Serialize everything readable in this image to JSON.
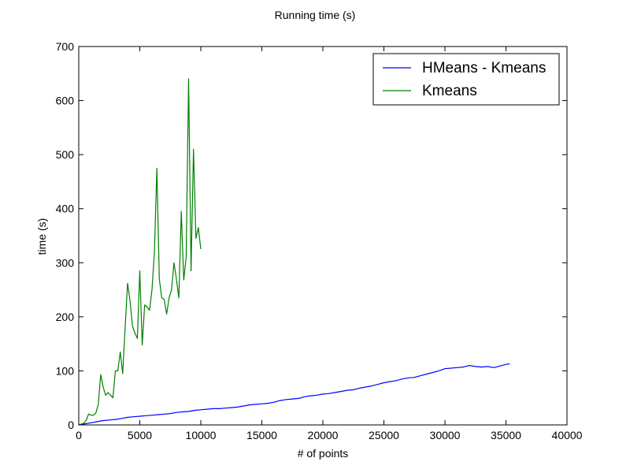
{
  "chart_data": {
    "type": "line",
    "title": "Running time (s)",
    "xlabel": "# of points",
    "ylabel": "time (s)",
    "xlim": [
      0,
      40000
    ],
    "ylim": [
      0,
      700
    ],
    "xticks": [
      0,
      5000,
      10000,
      15000,
      20000,
      25000,
      30000,
      35000,
      40000
    ],
    "yticks": [
      0,
      100,
      200,
      300,
      400,
      500,
      600,
      700
    ],
    "grid": false,
    "legend_position": "top-right",
    "series": [
      {
        "name": "HMeans - Kmeans",
        "color": "#0000ff",
        "points": [
          [
            0,
            0
          ],
          [
            500,
            2
          ],
          [
            1000,
            4
          ],
          [
            1500,
            6
          ],
          [
            2000,
            8
          ],
          [
            2500,
            9
          ],
          [
            3000,
            10
          ],
          [
            3500,
            12
          ],
          [
            4000,
            14
          ],
          [
            4500,
            15
          ],
          [
            5000,
            16
          ],
          [
            5500,
            17
          ],
          [
            6000,
            18
          ],
          [
            6500,
            19
          ],
          [
            7000,
            20
          ],
          [
            7500,
            21
          ],
          [
            8000,
            23
          ],
          [
            8500,
            24
          ],
          [
            9000,
            25
          ],
          [
            9500,
            27
          ],
          [
            10000,
            28
          ],
          [
            10500,
            29
          ],
          [
            11000,
            30
          ],
          [
            11500,
            30
          ],
          [
            12000,
            31
          ],
          [
            12500,
            32
          ],
          [
            13000,
            33
          ],
          [
            13500,
            35
          ],
          [
            14000,
            37
          ],
          [
            14500,
            38
          ],
          [
            15000,
            39
          ],
          [
            15500,
            40
          ],
          [
            16000,
            42
          ],
          [
            16500,
            45
          ],
          [
            17000,
            47
          ],
          [
            17500,
            48
          ],
          [
            18000,
            49
          ],
          [
            18500,
            52
          ],
          [
            19000,
            54
          ],
          [
            19500,
            55
          ],
          [
            20000,
            57
          ],
          [
            20500,
            58
          ],
          [
            21000,
            60
          ],
          [
            21500,
            62
          ],
          [
            22000,
            64
          ],
          [
            22500,
            65
          ],
          [
            23000,
            68
          ],
          [
            23500,
            70
          ],
          [
            24000,
            72
          ],
          [
            24500,
            75
          ],
          [
            25000,
            78
          ],
          [
            25500,
            80
          ],
          [
            26000,
            82
          ],
          [
            26500,
            85
          ],
          [
            27000,
            87
          ],
          [
            27500,
            88
          ],
          [
            28000,
            91
          ],
          [
            28500,
            94
          ],
          [
            29000,
            97
          ],
          [
            29500,
            100
          ],
          [
            30000,
            104
          ],
          [
            30500,
            105
          ],
          [
            31000,
            106
          ],
          [
            31500,
            107
          ],
          [
            32000,
            110
          ],
          [
            32500,
            108
          ],
          [
            33000,
            107
          ],
          [
            33500,
            108
          ],
          [
            34000,
            106
          ],
          [
            34500,
            109
          ],
          [
            35000,
            112
          ],
          [
            35300,
            113
          ]
        ]
      },
      {
        "name": "Kmeans",
        "color": "#008000",
        "points": [
          [
            0,
            0
          ],
          [
            400,
            3
          ],
          [
            600,
            8
          ],
          [
            800,
            20
          ],
          [
            1000,
            18
          ],
          [
            1200,
            18
          ],
          [
            1400,
            22
          ],
          [
            1600,
            38
          ],
          [
            1800,
            93
          ],
          [
            2000,
            70
          ],
          [
            2200,
            55
          ],
          [
            2400,
            60
          ],
          [
            2600,
            55
          ],
          [
            2800,
            50
          ],
          [
            3000,
            100
          ],
          [
            3200,
            100
          ],
          [
            3400,
            135
          ],
          [
            3600,
            95
          ],
          [
            3800,
            180
          ],
          [
            4000,
            262
          ],
          [
            4200,
            230
          ],
          [
            4400,
            183
          ],
          [
            4600,
            170
          ],
          [
            4800,
            160
          ],
          [
            5000,
            285
          ],
          [
            5200,
            148
          ],
          [
            5400,
            222
          ],
          [
            5600,
            218
          ],
          [
            5800,
            212
          ],
          [
            6000,
            250
          ],
          [
            6200,
            320
          ],
          [
            6400,
            475
          ],
          [
            6600,
            270
          ],
          [
            6800,
            235
          ],
          [
            7000,
            232
          ],
          [
            7200,
            205
          ],
          [
            7400,
            235
          ],
          [
            7600,
            250
          ],
          [
            7800,
            300
          ],
          [
            8000,
            270
          ],
          [
            8200,
            235
          ],
          [
            8400,
            395
          ],
          [
            8600,
            268
          ],
          [
            8800,
            310
          ],
          [
            9000,
            640
          ],
          [
            9200,
            285
          ],
          [
            9400,
            510
          ],
          [
            9600,
            345
          ],
          [
            9800,
            365
          ],
          [
            10000,
            325
          ]
        ]
      }
    ]
  }
}
